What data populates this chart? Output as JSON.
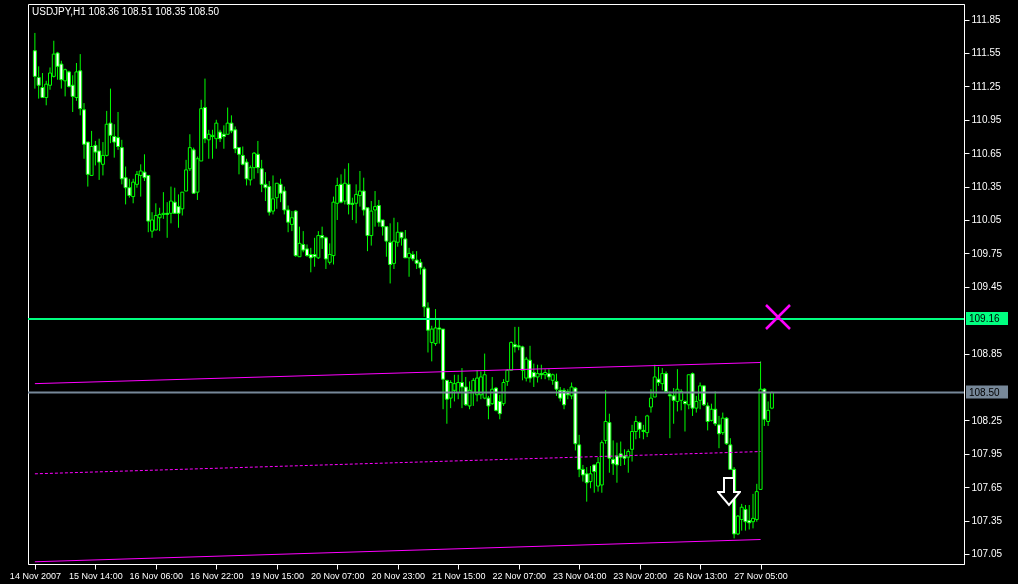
{
  "chart_data": {
    "type": "candlestick",
    "title": "USDJPY,H1  108.36 108.51 108.35 108.50",
    "color": "#00ff00",
    "categories": [
      "14 Nov 2007",
      null,
      null,
      null,
      null,
      null,
      null,
      null,
      null,
      null,
      null,
      null,
      null,
      null,
      null,
      null,
      "15 Nov 14:00",
      null,
      null,
      null,
      null,
      null,
      null,
      null,
      null,
      null,
      null,
      null,
      null,
      null,
      null,
      null,
      "16 Nov 06:00",
      null,
      null,
      null,
      null,
      null,
      null,
      null,
      null,
      null,
      null,
      null,
      null,
      null,
      null,
      null,
      "16 Nov 22:00",
      null,
      null,
      null,
      null,
      null,
      null,
      null,
      null,
      null,
      null,
      null,
      null,
      null,
      null,
      null,
      "19 Nov 15:00",
      null,
      null,
      null,
      null,
      null,
      null,
      null,
      null,
      null,
      null,
      null,
      null,
      null,
      null,
      null,
      "20 Nov 07:00",
      null,
      null,
      null,
      null,
      null,
      null,
      null,
      null,
      null,
      null,
      null,
      null,
      null,
      null,
      null,
      "20 Nov 23:00",
      null,
      null,
      null,
      null,
      null,
      null,
      null,
      null,
      null,
      null,
      null,
      null,
      null,
      null,
      null,
      "21 Nov 15:00",
      null,
      null,
      null,
      null,
      null,
      null,
      null,
      null,
      null,
      null,
      null,
      null,
      null,
      null,
      null,
      "22 Nov 07:00",
      null,
      null,
      null,
      null,
      null,
      null,
      null,
      null,
      null,
      null,
      null,
      null,
      null,
      null,
      null,
      "23 Nov 04:00",
      null,
      null,
      null,
      null,
      null,
      null,
      null,
      null,
      null,
      null,
      null,
      null,
      null,
      null,
      null,
      "23 Nov 20:00",
      null,
      null,
      null,
      null,
      null,
      null,
      null,
      null,
      null,
      null,
      null,
      null,
      null,
      null,
      null,
      "26 Nov 13:00",
      null,
      null,
      null,
      null,
      null,
      null,
      null,
      null,
      null,
      null,
      null,
      null,
      null,
      null,
      null,
      "27 Nov 05:00",
      null,
      null,
      null,
      null,
      null,
      null,
      null,
      null,
      null,
      null,
      null,
      null,
      null,
      null,
      null,
      null,
      null,
      null,
      null,
      null,
      null,
      null,
      null,
      null,
      null,
      null,
      null,
      null,
      null,
      null,
      null,
      null,
      null,
      null,
      null,
      null,
      null,
      null,
      null,
      null,
      null,
      null,
      null,
      null,
      null,
      null,
      null,
      null,
      null,
      null,
      null,
      null
    ],
    "ohlc": [
      [
        111.57,
        111.73,
        111.23,
        111.34
      ],
      [
        111.33,
        111.43,
        111.14,
        111.26
      ],
      [
        111.24,
        111.37,
        111.15,
        111.15
      ],
      [
        111.15,
        111.3,
        111.08,
        111.27
      ],
      [
        111.26,
        111.42,
        111.22,
        111.37
      ],
      [
        111.34,
        111.66,
        111.33,
        111.54
      ],
      [
        111.55,
        111.56,
        111.31,
        111.43
      ],
      [
        111.45,
        111.48,
        111.23,
        111.31
      ],
      [
        111.3,
        111.41,
        111.16,
        111.4
      ],
      [
        111.38,
        111.39,
        111.24,
        111.25
      ],
      [
        111.26,
        111.35,
        111.02,
        111.16
      ],
      [
        111.15,
        111.46,
        111.12,
        111.38
      ],
      [
        111.39,
        111.54,
        110.99,
        111.05
      ],
      [
        111.04,
        111.1,
        110.6,
        110.73
      ],
      [
        110.75,
        110.75,
        110.35,
        110.46
      ],
      [
        110.45,
        110.85,
        110.45,
        110.71
      ],
      [
        110.72,
        110.76,
        110.54,
        110.66
      ],
      [
        110.67,
        110.78,
        110.41,
        110.57
      ],
      [
        110.55,
        110.75,
        110.45,
        110.63
      ],
      [
        110.63,
        111.03,
        110.62,
        110.91
      ],
      [
        110.92,
        111.23,
        110.74,
        110.81
      ],
      [
        110.8,
        110.91,
        110.61,
        110.75
      ],
      [
        110.79,
        111.02,
        110.68,
        110.71
      ],
      [
        110.7,
        110.77,
        110.37,
        110.42
      ],
      [
        110.43,
        110.53,
        110.19,
        110.34
      ],
      [
        110.34,
        110.42,
        110.25,
        110.27
      ],
      [
        110.26,
        110.42,
        110.2,
        110.39
      ],
      [
        110.37,
        110.49,
        110.34,
        110.46
      ],
      [
        110.45,
        110.55,
        110.26,
        110.49
      ],
      [
        110.48,
        110.64,
        110.4,
        110.43
      ],
      [
        110.45,
        110.45,
        109.94,
        110.04
      ],
      [
        109.95,
        110.12,
        109.89,
        110.05
      ],
      [
        109.96,
        110.2,
        109.96,
        110.09
      ],
      [
        110.07,
        110.16,
        109.95,
        110.1
      ],
      [
        110.1,
        110.3,
        110.06,
        110.11
      ],
      [
        110.11,
        110.21,
        109.89,
        110.1
      ],
      [
        110.11,
        110.35,
        110.02,
        110.22
      ],
      [
        110.21,
        110.34,
        110.11,
        110.11
      ],
      [
        110.17,
        110.28,
        109.98,
        110.11
      ],
      [
        110.15,
        110.3,
        110.09,
        110.3
      ],
      [
        110.31,
        110.59,
        110.31,
        110.5
      ],
      [
        110.51,
        110.82,
        110.49,
        110.7
      ],
      [
        110.68,
        110.7,
        110.29,
        110.29
      ],
      [
        110.3,
        110.62,
        110.23,
        110.6
      ],
      [
        110.58,
        111.13,
        110.58,
        111.05
      ],
      [
        111.06,
        111.32,
        110.74,
        110.78
      ],
      [
        110.77,
        110.86,
        110.6,
        110.82
      ],
      [
        110.8,
        110.86,
        110.6,
        110.81
      ],
      [
        110.78,
        110.95,
        110.69,
        110.92
      ],
      [
        110.84,
        110.86,
        110.75,
        110.78
      ],
      [
        110.82,
        110.9,
        110.69,
        110.8
      ],
      [
        110.82,
        111.06,
        110.82,
        110.92
      ],
      [
        110.92,
        110.99,
        110.83,
        110.85
      ],
      [
        110.86,
        110.89,
        110.65,
        110.69
      ],
      [
        110.7,
        110.7,
        110.46,
        110.64
      ],
      [
        110.63,
        110.71,
        110.54,
        110.55
      ],
      [
        110.57,
        110.6,
        110.36,
        110.42
      ],
      [
        110.41,
        110.54,
        110.36,
        110.52
      ],
      [
        110.52,
        110.66,
        110.42,
        110.65
      ],
      [
        110.64,
        110.76,
        110.47,
        110.52
      ],
      [
        110.51,
        110.59,
        110.3,
        110.37
      ],
      [
        110.37,
        110.48,
        110.22,
        110.34
      ],
      [
        110.35,
        110.4,
        110.09,
        110.12
      ],
      [
        110.13,
        110.45,
        110.1,
        110.24
      ],
      [
        110.25,
        110.38,
        110.15,
        110.38
      ],
      [
        110.37,
        110.42,
        110.21,
        110.29
      ],
      [
        110.31,
        110.35,
        110.1,
        110.14
      ],
      [
        110.14,
        110.18,
        109.94,
        110.03
      ],
      [
        110.01,
        110.13,
        109.95,
        110.07
      ],
      [
        110.13,
        110.14,
        109.72,
        109.73
      ],
      [
        109.72,
        109.99,
        109.72,
        109.84
      ],
      [
        109.83,
        109.95,
        109.76,
        109.78
      ],
      [
        109.79,
        109.83,
        109.72,
        109.73
      ],
      [
        109.74,
        109.8,
        109.58,
        109.71
      ],
      [
        109.74,
        109.89,
        109.63,
        109.72
      ],
      [
        109.71,
        109.95,
        109.7,
        109.91
      ],
      [
        109.91,
        109.99,
        109.79,
        109.89
      ],
      [
        109.89,
        109.9,
        109.61,
        109.7
      ],
      [
        109.67,
        109.84,
        109.65,
        109.74
      ],
      [
        109.73,
        110.26,
        109.65,
        110.21
      ],
      [
        110.2,
        110.43,
        110.05,
        110.36
      ],
      [
        110.37,
        110.46,
        110.2,
        110.21
      ],
      [
        110.22,
        110.51,
        110.19,
        110.38
      ],
      [
        110.37,
        110.56,
        110.1,
        110.19
      ],
      [
        110.2,
        110.25,
        110.05,
        110.19
      ],
      [
        110.2,
        110.37,
        110.02,
        110.28
      ],
      [
        110.27,
        110.49,
        110.17,
        110.31
      ],
      [
        110.31,
        110.43,
        110.09,
        110.14
      ],
      [
        110.16,
        110.16,
        109.77,
        109.91
      ],
      [
        109.91,
        110.22,
        109.82,
        110.13
      ],
      [
        110.14,
        110.31,
        109.99,
        110.17
      ],
      [
        110.18,
        110.23,
        109.99,
        110.03
      ],
      [
        110.05,
        110.05,
        109.91,
        109.99
      ],
      [
        109.99,
        109.99,
        109.72,
        109.86
      ],
      [
        109.85,
        110.02,
        109.48,
        109.65
      ],
      [
        109.66,
        110.07,
        109.61,
        109.86
      ],
      [
        109.85,
        110.03,
        109.81,
        109.94
      ],
      [
        109.94,
        109.94,
        109.82,
        109.89
      ],
      [
        109.88,
        109.96,
        109.71,
        109.71
      ],
      [
        109.71,
        109.8,
        109.54,
        109.75
      ],
      [
        109.74,
        109.77,
        109.68,
        109.7
      ],
      [
        109.69,
        109.77,
        109.61,
        109.66
      ],
      [
        109.67,
        109.7,
        109.56,
        109.62
      ],
      [
        109.61,
        109.63,
        109.18,
        109.27
      ],
      [
        109.26,
        109.31,
        108.86,
        109.06
      ],
      [
        108.95,
        109.1,
        108.78,
        109.07
      ],
      [
        108.94,
        109.25,
        108.92,
        109.08
      ],
      [
        109.08,
        109.17,
        108.94,
        109.07
      ],
      [
        109.07,
        109.07,
        108.35,
        108.62
      ],
      [
        108.61,
        108.61,
        108.22,
        108.44
      ],
      [
        108.45,
        108.61,
        108.36,
        108.59
      ],
      [
        108.52,
        108.66,
        108.42,
        108.58
      ],
      [
        108.5,
        108.66,
        108.44,
        108.59
      ],
      [
        108.59,
        108.72,
        108.36,
        108.55
      ],
      [
        108.55,
        108.64,
        108.38,
        108.39
      ],
      [
        108.38,
        108.6,
        108.35,
        108.52
      ],
      [
        108.5,
        108.63,
        108.38,
        108.61
      ],
      [
        108.48,
        108.7,
        108.42,
        108.63
      ],
      [
        108.48,
        108.69,
        108.44,
        108.64
      ],
      [
        108.45,
        108.85,
        108.44,
        108.66
      ],
      [
        108.45,
        108.47,
        108.26,
        108.38
      ],
      [
        108.4,
        108.64,
        108.39,
        108.53
      ],
      [
        108.54,
        108.55,
        108.33,
        108.34
      ],
      [
        108.42,
        108.48,
        108.26,
        108.31
      ],
      [
        108.4,
        108.62,
        108.38,
        108.59
      ],
      [
        108.6,
        108.71,
        108.56,
        108.7
      ],
      [
        108.7,
        108.96,
        108.7,
        108.95
      ],
      [
        108.93,
        109.09,
        108.86,
        108.91
      ],
      [
        108.92,
        109.09,
        108.88,
        108.91
      ],
      [
        108.91,
        108.92,
        108.61,
        108.7
      ],
      [
        108.63,
        108.82,
        108.6,
        108.8
      ],
      [
        108.79,
        108.92,
        108.59,
        108.63
      ],
      [
        108.68,
        108.76,
        108.55,
        108.64
      ],
      [
        108.64,
        108.75,
        108.59,
        108.67
      ],
      [
        108.67,
        108.75,
        108.62,
        108.66
      ],
      [
        108.66,
        108.71,
        108.62,
        108.68
      ],
      [
        108.67,
        108.71,
        108.61,
        108.64
      ],
      [
        108.61,
        108.67,
        108.57,
        108.66
      ],
      [
        108.6,
        108.67,
        108.47,
        108.53
      ],
      [
        108.52,
        108.55,
        108.42,
        108.45
      ],
      [
        108.52,
        108.54,
        108.35,
        108.39
      ],
      [
        108.51,
        108.53,
        108.44,
        108.48
      ],
      [
        108.47,
        108.59,
        108.44,
        108.55
      ],
      [
        108.54,
        108.55,
        107.98,
        108.04
      ],
      [
        108.03,
        108.12,
        107.74,
        107.81
      ],
      [
        107.81,
        107.85,
        107.7,
        107.76
      ],
      [
        107.77,
        107.83,
        107.52,
        107.69
      ],
      [
        107.7,
        107.84,
        107.64,
        107.77
      ],
      [
        107.85,
        107.85,
        107.6,
        107.79
      ],
      [
        107.66,
        107.92,
        107.61,
        107.87
      ],
      [
        107.67,
        108.07,
        107.6,
        108.05
      ],
      [
        108.07,
        108.52,
        108.04,
        108.24
      ],
      [
        108.23,
        108.31,
        107.78,
        107.91
      ],
      [
        107.9,
        108.07,
        107.76,
        107.86
      ],
      [
        107.93,
        108.05,
        107.69,
        107.85
      ],
      [
        107.95,
        108.06,
        107.84,
        107.92
      ],
      [
        107.93,
        107.99,
        107.85,
        107.91
      ],
      [
        107.92,
        107.99,
        107.78,
        107.97
      ],
      [
        107.99,
        108.21,
        107.88,
        108.15
      ],
      [
        108.15,
        108.29,
        108.08,
        108.24
      ],
      [
        108.23,
        108.24,
        108.09,
        108.17
      ],
      [
        108.16,
        108.21,
        108.08,
        108.15
      ],
      [
        108.14,
        108.3,
        108.1,
        108.29
      ],
      [
        108.37,
        108.53,
        108.32,
        108.45
      ],
      [
        108.46,
        108.75,
        108.46,
        108.64
      ],
      [
        108.62,
        108.73,
        108.56,
        108.59
      ],
      [
        108.58,
        108.72,
        108.52,
        108.67
      ],
      [
        108.67,
        108.69,
        108.5,
        108.51
      ],
      [
        108.48,
        108.51,
        108.09,
        108.47
      ],
      [
        108.47,
        108.54,
        108.22,
        108.43
      ],
      [
        108.42,
        108.71,
        108.33,
        108.53
      ],
      [
        108.43,
        108.53,
        108.34,
        108.51
      ],
      [
        108.42,
        108.43,
        108.15,
        108.4
      ],
      [
        108.39,
        108.66,
        108.35,
        108.66
      ],
      [
        108.67,
        108.68,
        108.29,
        108.36
      ],
      [
        108.36,
        108.47,
        108.32,
        108.42
      ],
      [
        108.43,
        108.59,
        108.35,
        108.56
      ],
      [
        108.56,
        108.56,
        108.38,
        108.39
      ],
      [
        108.38,
        108.41,
        108.16,
        108.24
      ],
      [
        108.25,
        108.4,
        108.24,
        108.35
      ],
      [
        108.35,
        108.51,
        108.2,
        108.22
      ],
      [
        108.21,
        108.29,
        108.0,
        108.13
      ],
      [
        108.14,
        108.32,
        108.12,
        108.27
      ],
      [
        108.27,
        108.28,
        108.03,
        108.04
      ],
      [
        108.03,
        108.09,
        107.81,
        107.81
      ],
      [
        107.81,
        107.83,
        107.19,
        107.23
      ],
      [
        107.23,
        107.4,
        107.22,
        107.39
      ],
      [
        107.36,
        107.5,
        107.26,
        107.47
      ],
      [
        107.45,
        107.49,
        107.26,
        107.34
      ],
      [
        107.35,
        107.49,
        107.27,
        107.33
      ],
      [
        107.34,
        107.59,
        107.28,
        107.37
      ],
      [
        107.36,
        107.68,
        107.34,
        107.61
      ],
      [
        107.63,
        108.78,
        107.63,
        108.53
      ],
      [
        108.53,
        108.54,
        108.2,
        108.26
      ],
      [
        108.24,
        108.42,
        108.2,
        108.34
      ],
      [
        108.36,
        108.51,
        108.35,
        108.5
      ],
      null,
      null,
      null,
      null,
      null,
      null,
      null,
      null,
      null,
      null,
      null,
      null,
      null,
      null,
      null,
      null,
      null,
      null,
      null,
      null,
      null,
      null,
      null,
      null,
      null,
      null,
      null,
      null,
      null,
      null,
      null,
      null,
      null,
      null,
      null,
      null,
      null,
      null,
      null,
      null,
      null,
      null,
      null,
      null,
      null,
      null,
      null,
      null,
      null
    ],
    "series": [
      {
        "type": "line",
        "color": "#ff00ff",
        "line_style": "solid",
        "x": [
          "14 Nov 2007",
          "27 Nov 05:00"
        ],
        "values": [
          108.58,
          108.77
        ]
      },
      {
        "type": "line",
        "color": "#ff00ff",
        "line_style": "dashed",
        "x": [
          "14 Nov 2007",
          "27 Nov 05:00"
        ],
        "values": [
          107.77,
          107.97
        ]
      },
      {
        "type": "line",
        "color": "#ff00ff",
        "line_style": "solid",
        "x": [
          "14 Nov 2007",
          "27 Nov 05:00"
        ],
        "values": [
          106.98,
          107.18
        ]
      }
    ],
    "ref_lines": [
      {
        "axis": "y",
        "value": 109.16,
        "label": "109.16",
        "color": "#00ff80",
        "line_style": "solid"
      },
      {
        "axis": "y",
        "value": 108.5,
        "label": "108.50",
        "color": "#778899",
        "line_style": "solid"
      }
    ],
    "ylim": [
      106.96,
      111.99
    ],
    "yticks": [
      107.05,
      107.35,
      107.65,
      107.95,
      108.25,
      108.85,
      109.45,
      109.75,
      110.05,
      110.35,
      110.65,
      110.95,
      111.25,
      111.55,
      111.85
    ]
  }
}
